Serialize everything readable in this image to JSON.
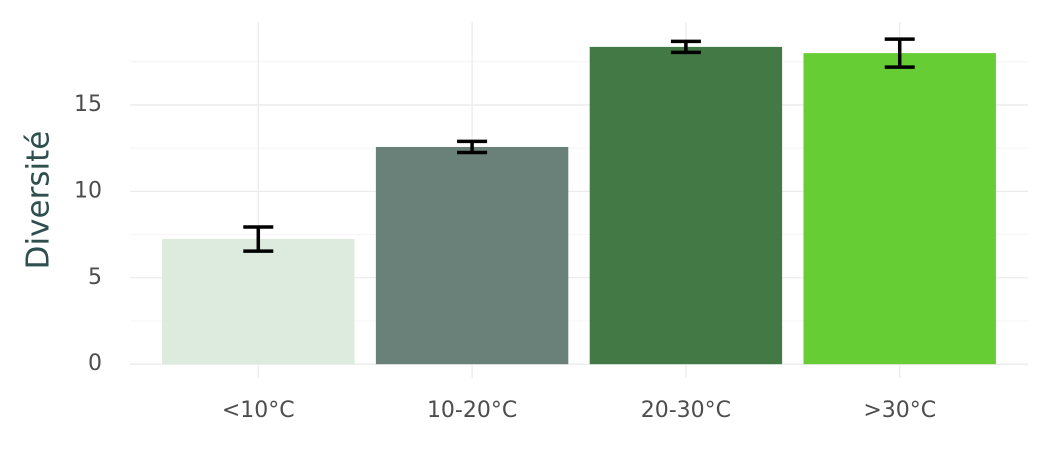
{
  "chart_data": {
    "type": "bar",
    "y_label": "Diversité",
    "categories": [
      "<10°C",
      "10-20°C",
      "20-30°C",
      ">30°C"
    ],
    "values": [
      7.24,
      12.57,
      18.36,
      18.0
    ],
    "errors": [
      0.7,
      0.32,
      0.32,
      0.81
    ],
    "colors": [
      "#dcebdd",
      "#6a817a",
      "#437944",
      "#67cd34"
    ],
    "ylim": [
      -0.8,
      19.8
    ],
    "yticks": [
      0,
      5,
      10,
      15
    ],
    "minor_yticks": [
      2.5,
      7.5,
      12.5,
      17.5
    ],
    "grid": true
  }
}
